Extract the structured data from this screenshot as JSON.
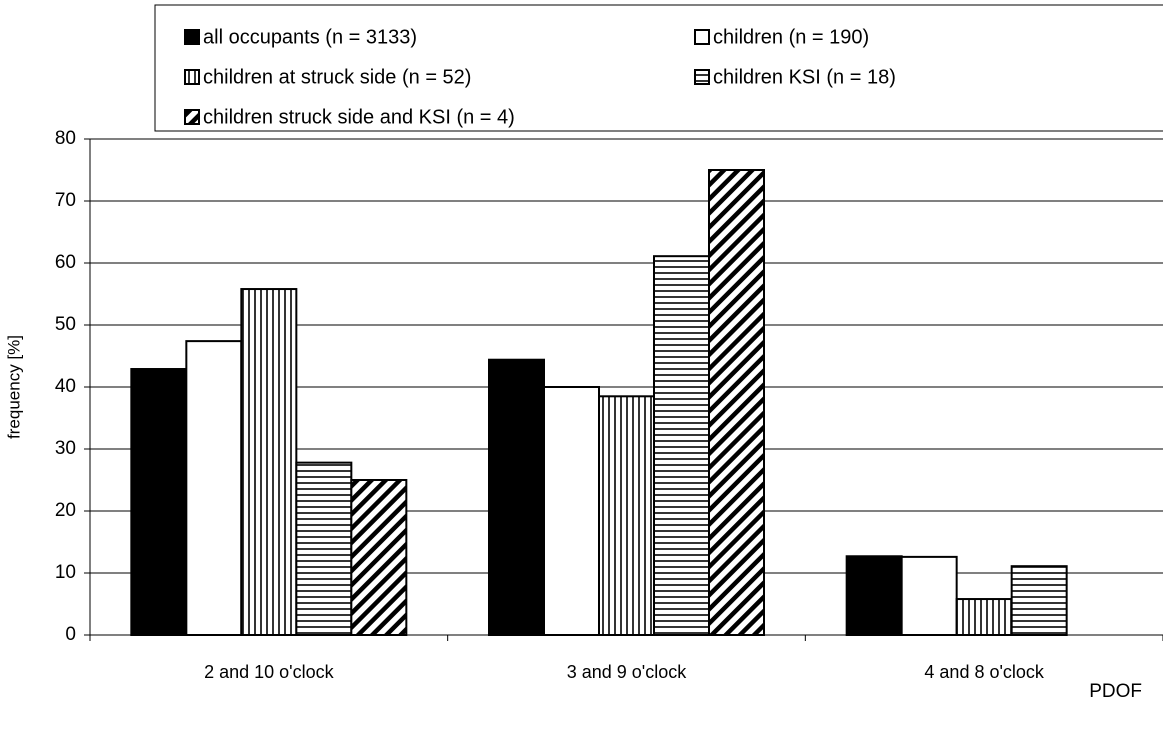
{
  "chart_data": {
    "type": "bar",
    "categories": [
      "2 and 10 o'clock",
      "3 and 9 o'clock",
      "4 and 8 o'clock"
    ],
    "series": [
      {
        "name": "all occupants (n = 3133)",
        "color": "#000000",
        "pattern": "solid",
        "values": [
          42.9,
          44.4,
          12.7
        ]
      },
      {
        "name": "children (n = 190)",
        "color": "#ffffff",
        "pattern": "solid",
        "values": [
          47.4,
          40.0,
          12.6
        ]
      },
      {
        "name": "children at struck side (n = 52)",
        "color": "#000000",
        "pattern": "vertical",
        "values": [
          55.8,
          38.5,
          5.8
        ]
      },
      {
        "name": "children KSI (n = 18)",
        "color": "#000000",
        "pattern": "horizontal",
        "values": [
          27.8,
          61.1,
          11.1
        ]
      },
      {
        "name": "children struck side and KSI (n = 4)",
        "color": "#000000",
        "pattern": "diagonal",
        "values": [
          25.0,
          75.0,
          0
        ]
      }
    ],
    "y_label": "frequency [%]",
    "x_label": "PDOF",
    "ylim": [
      0,
      80
    ],
    "yticks": [
      0,
      10,
      20,
      30,
      40,
      50,
      60,
      70,
      80
    ],
    "grid": true,
    "legend": "top"
  }
}
